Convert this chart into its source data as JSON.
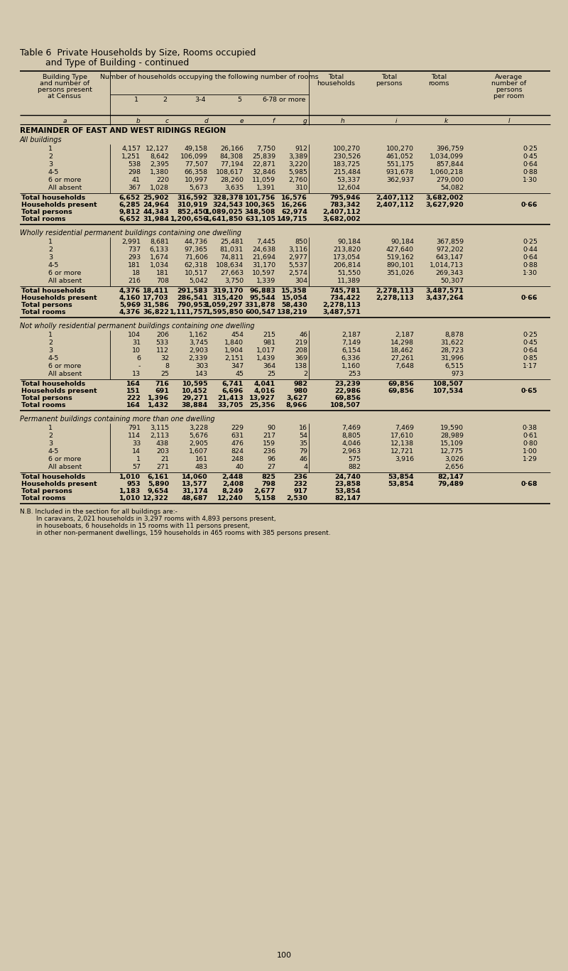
{
  "title_line1": "Table 6  Private Households by Size, Rooms occupied",
  "title_line2": "         and Type of Building - continued",
  "bg_color": "#d4c9b0",
  "sections": [
    {
      "title": "REMAINDER OF EAST AND WEST RIDINGS REGION",
      "subsections": [
        {
          "subtitle": "All buildings",
          "data_rows": [
            [
              "1",
              "4,157",
              "12,127",
              "49,158",
              "26,166",
              "7,750",
              "912",
              "100,270",
              "100,270",
              "396,759",
              "0·25"
            ],
            [
              "2",
              "1,251",
              "8,642",
              "106,099",
              "84,308",
              "25,839",
              "3,389",
              "230,526",
              "461,052",
              "1,034,099",
              "0·45"
            ],
            [
              "3",
              "538",
              "2,395",
              "77,507",
              "77,194",
              "22,871",
              "3,220",
              "183,725",
              "551,175",
              "857,844",
              "0·64"
            ],
            [
              "4-5",
              "298",
              "1,380",
              "66,358",
              "108,617",
              "32,846",
              "5,985",
              "215,484",
              "931,678",
              "1,060,218",
              "0·88"
            ],
            [
              "6 or more",
              "41",
              "220",
              "10,997",
              "28,260",
              "11,059",
              "2,760",
              "53,337",
              "362,937",
              "279,000",
              "1·30"
            ],
            [
              "All absent",
              "367",
              "1,028",
              "5,673",
              "3,635",
              "1,391",
              "310",
              "12,604",
              "",
              "54,082",
              ""
            ]
          ],
          "summary_rows": [
            [
              "Total households",
              "6,652",
              "25,902",
              "316,592",
              "328,378",
              "101,756",
              "16,576",
              "795,946",
              "2,407,112",
              "3,682,002",
              ""
            ],
            [
              "Households present",
              "6,285",
              "24,964",
              "310,919",
              "324,543",
              "100,365",
              "16,266",
              "783,342",
              "2,407,112",
              "3,627,920",
              "0·66"
            ],
            [
              "Total persons",
              "9,812",
              "44,343",
              "852,450",
              "1,089,025",
              "348,508",
              "62,974",
              "2,407,112",
              "",
              "",
              ""
            ],
            [
              "Total rooms",
              "6,652",
              "31,984",
              "1,200,656",
              "1,641,850",
              "631,105",
              "149,715",
              "3,682,002",
              "",
              "",
              ""
            ]
          ]
        },
        {
          "subtitle": "Wholly residential permanent buildings containing one dwelling",
          "data_rows": [
            [
              "1",
              "2,991",
              "8,681",
              "44,736",
              "25,481",
              "7,445",
              "850",
              "90,184",
              "90,184",
              "367,859",
              "0·25"
            ],
            [
              "2",
              "737",
              "6,133",
              "97,365",
              "81,031",
              "24,638",
              "3,116",
              "213,820",
              "427,640",
              "972,202",
              "0·44"
            ],
            [
              "3",
              "293",
              "1,674",
              "71,606",
              "74,811",
              "21,694",
              "2,977",
              "173,054",
              "519,162",
              "643,147",
              "0·64"
            ],
            [
              "4-5",
              "181",
              "1,034",
              "62,318",
              "108,634",
              "31,170",
              "5,537",
              "206,814",
              "890,101",
              "1,014,713",
              "0·88"
            ],
            [
              "6 or more",
              "18",
              "181",
              "10,517",
              "27,663",
              "10,597",
              "2,574",
              "51,550",
              "351,026",
              "269,343",
              "1·30"
            ],
            [
              "All absent",
              "216",
              "708",
              "5,042",
              "3,750",
              "1,339",
              "304",
              "11,389",
              "",
              "50,307",
              ""
            ]
          ],
          "summary_rows": [
            [
              "Total households",
              "4,376",
              "18,411",
              "291,583",
              "319,170",
              "96,883",
              "15,358",
              "745,781",
              "2,278,113",
              "3,487,571",
              ""
            ],
            [
              "Households present",
              "4,160",
              "17,703",
              "286,541",
              "315,420",
              "95,544",
              "15,054",
              "734,422",
              "2,278,113",
              "3,437,264",
              "0·66"
            ],
            [
              "Total persons",
              "5,969",
              "31,586",
              "790,953",
              "1,059,297",
              "331,878",
              "58,430",
              "2,278,113",
              "",
              "",
              ""
            ],
            [
              "Total rooms",
              "4,376",
              "36,822",
              "1,111,757",
              "1,595,850",
              "600,547",
              "138,219",
              "3,487,571",
              "",
              "",
              ""
            ]
          ]
        },
        {
          "subtitle": "Not wholly residential permanent buildings containing one dwelling",
          "data_rows": [
            [
              "1",
              "104",
              "206",
              "1,162",
              "454",
              "215",
              "46",
              "2,187",
              "2,187",
              "8,878",
              "0·25"
            ],
            [
              "2",
              "31",
              "533",
              "3,745",
              "1,840",
              "981",
              "219",
              "7,149",
              "14,298",
              "31,622",
              "0·45"
            ],
            [
              "3",
              "10",
              "112",
              "2,903",
              "1,904",
              "1,017",
              "208",
              "6,154",
              "18,462",
              "28,723",
              "0·64"
            ],
            [
              "4-5",
              "6",
              "32",
              "2,339",
              "2,151",
              "1,439",
              "369",
              "6,336",
              "27,261",
              "31,996",
              "0·85"
            ],
            [
              "6 or more",
              "-",
              "8",
              "303",
              "347",
              "364",
              "138",
              "1,160",
              "7,648",
              "6,515",
              "1·17"
            ],
            [
              "All absent",
              "13",
              "25",
              "143",
              "45",
              "25",
              "2",
              "253",
              "",
              "973",
              ""
            ]
          ],
          "summary_rows": [
            [
              "Total households",
              "164",
              "716",
              "10,595",
              "6,741",
              "4,041",
              "982",
              "23,239",
              "69,856",
              "108,507",
              ""
            ],
            [
              "Households present",
              "151",
              "691",
              "10,452",
              "6,696",
              "4,016",
              "980",
              "22,986",
              "69,856",
              "107,534",
              "0·65"
            ],
            [
              "Total persons",
              "222",
              "1,396",
              "29,271",
              "21,413",
              "13,927",
              "3,627",
              "69,856",
              "",
              "",
              ""
            ],
            [
              "Total rooms",
              "164",
              "1,432",
              "38,884",
              "33,705",
              "25,356",
              "8,966",
              "108,507",
              "",
              "",
              ""
            ]
          ]
        },
        {
          "subtitle": "Permanent buildings containing more than one dwelling",
          "data_rows": [
            [
              "1",
              "791",
              "3,115",
              "3,228",
              "229",
              "90",
              "16",
              "7,469",
              "7,469",
              "19,590",
              "0·38"
            ],
            [
              "2",
              "114",
              "2,113",
              "5,676",
              "631",
              "217",
              "54",
              "8,805",
              "17,610",
              "28,989",
              "0·61"
            ],
            [
              "3",
              "33",
              "438",
              "2,905",
              "476",
              "159",
              "35",
              "4,046",
              "12,138",
              "15,109",
              "0·80"
            ],
            [
              "4-5",
              "14",
              "203",
              "1,607",
              "824",
              "236",
              "79",
              "2,963",
              "12,721",
              "12,775",
              "1·00"
            ],
            [
              "6 or more",
              "1",
              "21",
              "161",
              "248",
              "96",
              "46",
              "575",
              "3,916",
              "3,026",
              "1·29"
            ],
            [
              "All absent",
              "57",
              "271",
              "483",
              "40",
              "27",
              "4",
              "882",
              "",
              "2,656",
              ""
            ]
          ],
          "summary_rows": [
            [
              "Total households",
              "1,010",
              "6,161",
              "14,060",
              "2,448",
              "825",
              "236",
              "24,740",
              "53,854",
              "82,147",
              ""
            ],
            [
              "Households present",
              "953",
              "5,890",
              "13,577",
              "2,408",
              "798",
              "232",
              "23,858",
              "53,854",
              "79,489",
              "0·68"
            ],
            [
              "Total persons",
              "1,183",
              "9,654",
              "31,174",
              "8,249",
              "2,677",
              "917",
              "53,854",
              "",
              "",
              ""
            ],
            [
              "Total rooms",
              "1,010",
              "12,322",
              "48,687",
              "12,240",
              "5,158",
              "2,530",
              "82,147",
              "",
              "",
              ""
            ]
          ]
        }
      ]
    }
  ],
  "footnote_lines": [
    "N.B. Included in the section for all buildings are:-",
    "        In caravans, 2,021 households in 3,297 rooms with 4,893 persons present,",
    "        in houseboats, 6 households in 15 rooms with 11 persons present,",
    "        in other non-permanent dwellings, 159 households in 465 rooms with 385 persons present."
  ],
  "page_number": "100"
}
